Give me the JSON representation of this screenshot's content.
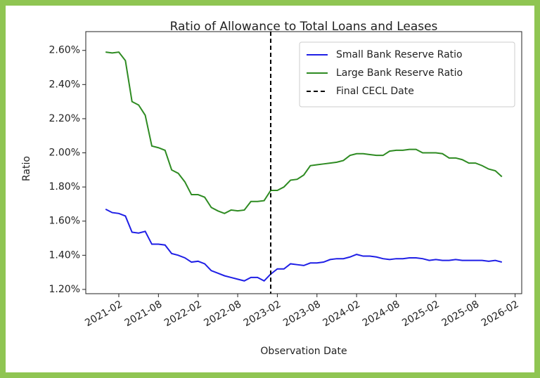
{
  "chart_data": {
    "type": "line",
    "title": "Ratio of Allowance to Total Loans and Leases",
    "xlabel": "Observation Date",
    "ylabel": "Ratio",
    "x": [
      "2020-12",
      "2021-01",
      "2021-02",
      "2021-03",
      "2021-04",
      "2021-05",
      "2021-06",
      "2021-07",
      "2021-08",
      "2021-09",
      "2021-10",
      "2021-11",
      "2021-12",
      "2022-01",
      "2022-02",
      "2022-03",
      "2022-04",
      "2022-05",
      "2022-06",
      "2022-07",
      "2022-08",
      "2022-09",
      "2022-10",
      "2022-11",
      "2022-12",
      "2023-01",
      "2023-02",
      "2023-03",
      "2023-04",
      "2023-05",
      "2023-06",
      "2023-07",
      "2023-08",
      "2023-09",
      "2023-10",
      "2023-11",
      "2023-12",
      "2024-01",
      "2024-02",
      "2024-03",
      "2024-04",
      "2024-05",
      "2024-06",
      "2024-07",
      "2024-08",
      "2024-09",
      "2024-10",
      "2024-11",
      "2024-12",
      "2025-01",
      "2025-02",
      "2025-03",
      "2025-04",
      "2025-05",
      "2025-06",
      "2025-07",
      "2025-08",
      "2025-09",
      "2025-10",
      "2025-11",
      "2025-12"
    ],
    "series": [
      {
        "name": "Small Bank Reserve Ratio",
        "color": "#1f1fe6",
        "values": [
          1.67,
          1.65,
          1.645,
          1.63,
          1.535,
          1.53,
          1.54,
          1.465,
          1.465,
          1.46,
          1.41,
          1.4,
          1.385,
          1.36,
          1.365,
          1.35,
          1.31,
          1.295,
          1.28,
          1.27,
          1.26,
          1.25,
          1.27,
          1.27,
          1.25,
          1.29,
          1.32,
          1.32,
          1.35,
          1.345,
          1.34,
          1.355,
          1.355,
          1.36,
          1.375,
          1.38,
          1.38,
          1.39,
          1.405,
          1.395,
          1.395,
          1.39,
          1.38,
          1.375,
          1.38,
          1.38,
          1.385,
          1.385,
          1.38,
          1.37,
          1.375,
          1.37,
          1.37,
          1.375,
          1.37,
          1.37,
          1.37,
          1.37,
          1.365,
          1.37,
          1.36
        ]
      },
      {
        "name": "Large Bank Reserve Ratio",
        "color": "#2e8b22",
        "values": [
          2.59,
          2.585,
          2.59,
          2.54,
          2.3,
          2.28,
          2.22,
          2.04,
          2.03,
          2.015,
          1.9,
          1.88,
          1.83,
          1.755,
          1.755,
          1.74,
          1.68,
          1.66,
          1.645,
          1.665,
          1.66,
          1.665,
          1.715,
          1.715,
          1.72,
          1.78,
          1.78,
          1.8,
          1.84,
          1.845,
          1.87,
          1.925,
          1.93,
          1.935,
          1.94,
          1.945,
          1.955,
          1.985,
          1.995,
          1.995,
          1.99,
          1.985,
          1.985,
          2.01,
          2.015,
          2.015,
          2.02,
          2.02,
          2.0,
          2.0,
          2.0,
          1.995,
          1.97,
          1.97,
          1.96,
          1.94,
          1.94,
          1.925,
          1.905,
          1.895,
          1.86
        ]
      }
    ],
    "vlines": [
      {
        "name": "Final CECL Date",
        "x": "2023-01",
        "color": "#000000"
      }
    ],
    "xlim": [
      "2020-09",
      "2026-03"
    ],
    "xticks": [
      "2021-02",
      "2021-08",
      "2022-02",
      "2022-08",
      "2023-02",
      "2023-08",
      "2024-02",
      "2024-08",
      "2025-02",
      "2025-08",
      "2026-02"
    ],
    "ylim": [
      1.175,
      2.71
    ],
    "yticks": [
      {
        "value": 1.2,
        "label": "1.20%"
      },
      {
        "value": 1.4,
        "label": "1.40%"
      },
      {
        "value": 1.6,
        "label": "1.60%"
      },
      {
        "value": 1.8,
        "label": "1.80%"
      },
      {
        "value": 2.0,
        "label": "2.00%"
      },
      {
        "value": 2.2,
        "label": "2.20%"
      },
      {
        "value": 2.4,
        "label": "2.40%"
      },
      {
        "value": 2.6,
        "label": "2.60%"
      }
    ],
    "legend": "upper right",
    "border_color": "#8fc552"
  }
}
